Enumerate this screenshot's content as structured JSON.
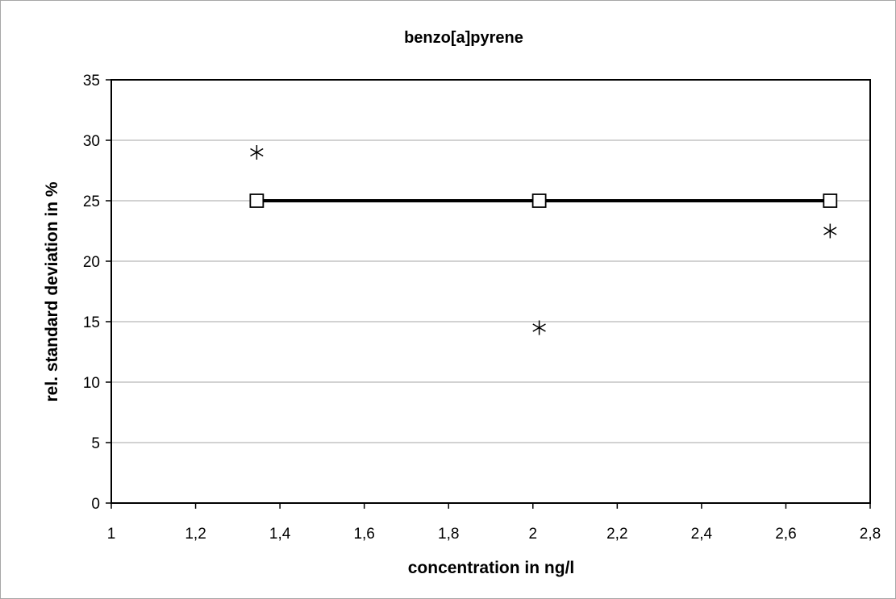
{
  "chart_data": {
    "type": "scatter",
    "title": "benzo[a]pyrene",
    "xlabel": "concentration in ng/l",
    "ylabel": "rel. standard deviation in %",
    "xlim": [
      1,
      2.8
    ],
    "ylim": [
      0,
      35
    ],
    "x_ticks": [
      "1",
      "1,2",
      "1,4",
      "1,6",
      "1,8",
      "2",
      "2,2",
      "2,4",
      "2,6",
      "2,8"
    ],
    "x_tick_values": [
      1,
      1.2,
      1.4,
      1.6,
      1.8,
      2,
      2.2,
      2.4,
      2.6,
      2.8
    ],
    "y_ticks": [
      "0",
      "5",
      "10",
      "15",
      "20",
      "25",
      "30",
      "35"
    ],
    "y_tick_values": [
      0,
      5,
      10,
      15,
      20,
      25,
      30,
      35
    ],
    "grid": "horizontal",
    "series": [
      {
        "marker": "asterisk",
        "line": false,
        "points": [
          {
            "x": 1.345,
            "y": 29.0
          },
          {
            "x": 2.015,
            "y": 14.5
          },
          {
            "x": 2.705,
            "y": 22.5
          }
        ]
      },
      {
        "marker": "square",
        "line": true,
        "points": [
          {
            "x": 1.345,
            "y": 25.0
          },
          {
            "x": 2.015,
            "y": 25.0
          },
          {
            "x": 2.705,
            "y": 25.0
          }
        ]
      }
    ],
    "colors": {
      "marks": "#000000",
      "grid": "#a6a6a6",
      "axis": "#000000"
    }
  }
}
